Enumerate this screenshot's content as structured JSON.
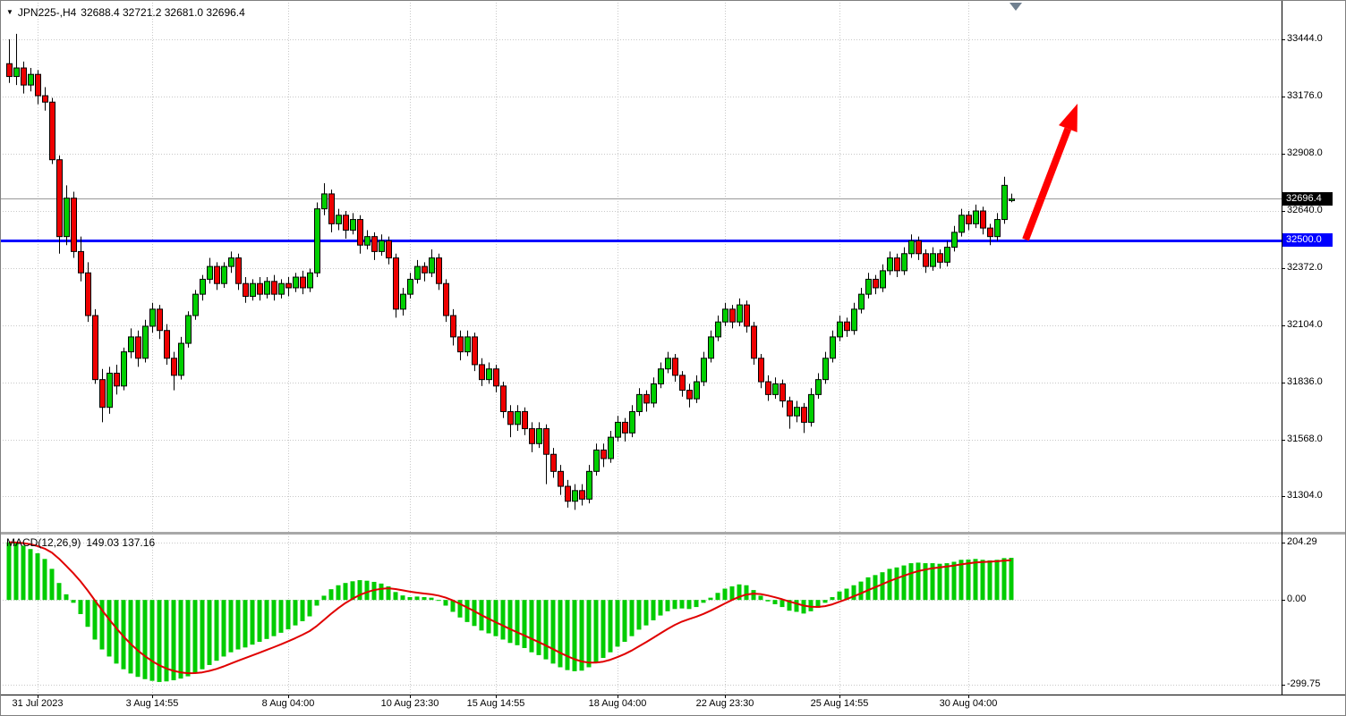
{
  "title_bar": {
    "menu_icon": "▼",
    "symbol": "JPN225-,H4",
    "ohlc": "32688.4 32721.2 32681.0 32696.4"
  },
  "macd_label": {
    "name": "MACD(12,26,9)",
    "values": "149.03 137.16"
  },
  "price_axis": {
    "current_badge": "32696.4",
    "level_badge": "32500.0"
  },
  "colors": {
    "background": "#FFFFFF",
    "grid": "#C8C8C8",
    "up": "#00CF00",
    "down": "#EE0000",
    "outline": "#000000",
    "histogram": "#00CC00",
    "signal": "#E00000",
    "level_line": "#0000FF",
    "arrow": "#FF0000",
    "current_line": "#999999"
  },
  "chart_data": [
    {
      "type": "candlestick",
      "symbol": "JPN225-",
      "timeframe": "H4",
      "current_price": 32696.4,
      "ylim": [
        31145,
        33620
      ],
      "y_ticks": [
        "33444.0",
        "33176.0",
        "32908.0",
        "32640.0",
        "32372.0",
        "32104.0",
        "31836.0",
        "31568.0",
        "31304.0"
      ],
      "x_ticks": [
        {
          "label": "31 Jul 2023",
          "i": 4
        },
        {
          "label": "3 Aug 14:55",
          "i": 20
        },
        {
          "label": "8 Aug 04:00",
          "i": 39
        },
        {
          "label": "10 Aug 23:30",
          "i": 56
        },
        {
          "label": "15 Aug 14:55",
          "i": 68
        },
        {
          "label": "18 Aug 04:00",
          "i": 85
        },
        {
          "label": "22 Aug 23:30",
          "i": 100
        },
        {
          "label": "25 Aug 14:55",
          "i": 116
        },
        {
          "label": "30 Aug 04:00",
          "i": 134
        }
      ],
      "annotations": {
        "hline": {
          "price": 32500.0,
          "width": 3
        },
        "arrow": {
          "from": [
            1146,
            268
          ],
          "to": [
            1204,
            116
          ]
        },
        "top_marker": {
          "x": 1135,
          "color": "#708090"
        }
      },
      "candles": [
        [
          33330,
          33444,
          33240,
          33270
        ],
        [
          33270,
          33470,
          33230,
          33310
        ],
        [
          33310,
          33340,
          33190,
          33230
        ],
        [
          33230,
          33310,
          33200,
          33280
        ],
        [
          33280,
          33300,
          33140,
          33180
        ],
        [
          33180,
          33220,
          33110,
          33150
        ],
        [
          33150,
          33170,
          32860,
          32880
        ],
        [
          32880,
          32900,
          32440,
          32520
        ],
        [
          32520,
          32760,
          32480,
          32700
        ],
        [
          32700,
          32730,
          32420,
          32450
        ],
        [
          32450,
          32520,
          32310,
          32350
        ],
        [
          32350,
          32400,
          32120,
          32150
        ],
        [
          32150,
          32180,
          31830,
          31850
        ],
        [
          31850,
          31900,
          31650,
          31720
        ],
        [
          31720,
          31910,
          31690,
          31880
        ],
        [
          31880,
          31920,
          31780,
          31820
        ],
        [
          31820,
          32000,
          31800,
          31980
        ],
        [
          31980,
          32090,
          31950,
          32050
        ],
        [
          32050,
          32080,
          31910,
          31950
        ],
        [
          31950,
          32130,
          31930,
          32100
        ],
        [
          32100,
          32210,
          32070,
          32180
        ],
        [
          32180,
          32200,
          32040,
          32080
        ],
        [
          32080,
          32110,
          31920,
          31950
        ],
        [
          31950,
          31980,
          31800,
          31870
        ],
        [
          31870,
          32050,
          31850,
          32020
        ],
        [
          32020,
          32170,
          32000,
          32150
        ],
        [
          32150,
          32270,
          32130,
          32250
        ],
        [
          32250,
          32340,
          32220,
          32320
        ],
        [
          32320,
          32420,
          32300,
          32380
        ],
        [
          32380,
          32400,
          32270,
          32300
        ],
        [
          32300,
          32400,
          32280,
          32380
        ],
        [
          32380,
          32450,
          32350,
          32420
        ],
        [
          32420,
          32440,
          32270,
          32300
        ],
        [
          32300,
          32330,
          32210,
          32240
        ],
        [
          32240,
          32320,
          32220,
          32300
        ],
        [
          32300,
          32330,
          32220,
          32250
        ],
        [
          32250,
          32330,
          32230,
          32310
        ],
        [
          32310,
          32340,
          32220,
          32250
        ],
        [
          32250,
          32320,
          32230,
          32300
        ],
        [
          32300,
          32330,
          32240,
          32280
        ],
        [
          32280,
          32350,
          32260,
          32330
        ],
        [
          32330,
          32360,
          32250,
          32280
        ],
        [
          32280,
          32370,
          32260,
          32350
        ],
        [
          32350,
          32680,
          32330,
          32650
        ],
        [
          32650,
          32770,
          32620,
          32720
        ],
        [
          32720,
          32740,
          32540,
          32580
        ],
        [
          32580,
          32650,
          32550,
          32620
        ],
        [
          32620,
          32640,
          32510,
          32550
        ],
        [
          32550,
          32630,
          32530,
          32600
        ],
        [
          32600,
          32620,
          32440,
          32480
        ],
        [
          32480,
          32550,
          32460,
          32520
        ],
        [
          32520,
          32540,
          32410,
          32450
        ],
        [
          32450,
          32530,
          32430,
          32500
        ],
        [
          32500,
          32520,
          32390,
          32420
        ],
        [
          32420,
          32440,
          32140,
          32180
        ],
        [
          32180,
          32280,
          32150,
          32250
        ],
        [
          32250,
          32350,
          32230,
          32320
        ],
        [
          32320,
          32410,
          32300,
          32380
        ],
        [
          32380,
          32400,
          32310,
          32350
        ],
        [
          32350,
          32460,
          32330,
          32420
        ],
        [
          32420,
          32440,
          32270,
          32300
        ],
        [
          32300,
          32320,
          32120,
          32150
        ],
        [
          32150,
          32180,
          32010,
          32050
        ],
        [
          32050,
          32080,
          31940,
          31980
        ],
        [
          31980,
          32080,
          31960,
          32050
        ],
        [
          32050,
          32070,
          31890,
          31920
        ],
        [
          31920,
          31950,
          31820,
          31850
        ],
        [
          31850,
          31930,
          31830,
          31900
        ],
        [
          31900,
          31920,
          31790,
          31820
        ],
        [
          31820,
          31840,
          31670,
          31700
        ],
        [
          31700,
          31730,
          31580,
          31640
        ],
        [
          31640,
          31730,
          31610,
          31700
        ],
        [
          31700,
          31720,
          31590,
          31620
        ],
        [
          31620,
          31650,
          31510,
          31550
        ],
        [
          31550,
          31650,
          31530,
          31620
        ],
        [
          31620,
          31640,
          31360,
          31500
        ],
        [
          31500,
          31530,
          31390,
          31420
        ],
        [
          31420,
          31450,
          31310,
          31350
        ],
        [
          31350,
          31380,
          31250,
          31280
        ],
        [
          31280,
          31360,
          31240,
          31330
        ],
        [
          31330,
          31360,
          31260,
          31290
        ],
        [
          31290,
          31450,
          31270,
          31420
        ],
        [
          31420,
          31550,
          31400,
          31520
        ],
        [
          31520,
          31550,
          31440,
          31480
        ],
        [
          31480,
          31610,
          31460,
          31580
        ],
        [
          31580,
          31680,
          31560,
          31650
        ],
        [
          31650,
          31670,
          31560,
          31600
        ],
        [
          31600,
          31730,
          31580,
          31700
        ],
        [
          31700,
          31810,
          31680,
          31780
        ],
        [
          31780,
          31800,
          31700,
          31740
        ],
        [
          31740,
          31860,
          31720,
          31830
        ],
        [
          31830,
          31930,
          31810,
          31900
        ],
        [
          31900,
          31980,
          31880,
          31950
        ],
        [
          31950,
          31970,
          31840,
          31870
        ],
        [
          31870,
          31890,
          31770,
          31800
        ],
        [
          31800,
          31830,
          31720,
          31760
        ],
        [
          31760,
          31870,
          31740,
          31840
        ],
        [
          31840,
          31980,
          31820,
          31950
        ],
        [
          31950,
          32080,
          31930,
          32050
        ],
        [
          32050,
          32150,
          32030,
          32120
        ],
        [
          32120,
          32210,
          32100,
          32180
        ],
        [
          32180,
          32200,
          32090,
          32120
        ],
        [
          32120,
          32230,
          32100,
          32200
        ],
        [
          32200,
          32220,
          32070,
          32100
        ],
        [
          32100,
          32120,
          31920,
          31950
        ],
        [
          31950,
          31970,
          31810,
          31840
        ],
        [
          31840,
          31870,
          31750,
          31780
        ],
        [
          31780,
          31860,
          31760,
          31830
        ],
        [
          31830,
          31850,
          31720,
          31750
        ],
        [
          31750,
          31770,
          31620,
          31680
        ],
        [
          31680,
          31750,
          31650,
          31720
        ],
        [
          31720,
          31740,
          31600,
          31650
        ],
        [
          31650,
          31810,
          31630,
          31780
        ],
        [
          31780,
          31880,
          31760,
          31850
        ],
        [
          31850,
          31980,
          31830,
          31950
        ],
        [
          31950,
          32080,
          31930,
          32050
        ],
        [
          32050,
          32150,
          32030,
          32120
        ],
        [
          32120,
          32140,
          32050,
          32080
        ],
        [
          32080,
          32210,
          32060,
          32180
        ],
        [
          32180,
          32280,
          32160,
          32250
        ],
        [
          32250,
          32350,
          32230,
          32320
        ],
        [
          32320,
          32340,
          32250,
          32280
        ],
        [
          32280,
          32390,
          32260,
          32360
        ],
        [
          32360,
          32450,
          32340,
          32420
        ],
        [
          32420,
          32440,
          32330,
          32360
        ],
        [
          32360,
          32470,
          32340,
          32440
        ],
        [
          32440,
          32530,
          32420,
          32500
        ],
        [
          32500,
          32520,
          32410,
          32440
        ],
        [
          32440,
          32460,
          32350,
          32380
        ],
        [
          32380,
          32470,
          32360,
          32440
        ],
        [
          32440,
          32460,
          32370,
          32400
        ],
        [
          32400,
          32500,
          32380,
          32470
        ],
        [
          32470,
          32570,
          32450,
          32540
        ],
        [
          32540,
          32650,
          32520,
          32620
        ],
        [
          32620,
          32640,
          32550,
          32580
        ],
        [
          32580,
          32670,
          32560,
          32640
        ],
        [
          32640,
          32660,
          32530,
          32560
        ],
        [
          32560,
          32580,
          32480,
          32520
        ],
        [
          32520,
          32630,
          32500,
          32600
        ],
        [
          32600,
          32800,
          32580,
          32760
        ],
        [
          32688.4,
          32721.2,
          32681.0,
          32696.4
        ]
      ]
    },
    {
      "type": "bar",
      "name": "MACD(12,26,9)",
      "main_value": 149.03,
      "signal_value": 137.16,
      "signal_period": 9,
      "ylim": [
        -325,
        225
      ],
      "y_ticks": [
        "204.29",
        "0.00",
        "-299.75"
      ],
      "histogram": [
        204,
        200,
        192,
        180,
        165,
        145,
        110,
        60,
        20,
        -10,
        -50,
        -95,
        -140,
        -175,
        -200,
        -225,
        -245,
        -260,
        -272,
        -280,
        -286,
        -290,
        -288,
        -284,
        -278,
        -270,
        -258,
        -245,
        -230,
        -215,
        -200,
        -185,
        -175,
        -168,
        -158,
        -148,
        -138,
        -128,
        -116,
        -104,
        -90,
        -75,
        -58,
        -20,
        15,
        38,
        52,
        60,
        66,
        70,
        68,
        64,
        58,
        48,
        28,
        16,
        10,
        12,
        10,
        8,
        -2,
        -20,
        -42,
        -62,
        -78,
        -92,
        -108,
        -118,
        -128,
        -140,
        -152,
        -160,
        -170,
        -185,
        -195,
        -210,
        -225,
        -238,
        -248,
        -252,
        -250,
        -238,
        -220,
        -205,
        -185,
        -165,
        -148,
        -128,
        -105,
        -90,
        -72,
        -55,
        -40,
        -32,
        -30,
        -32,
        -25,
        -10,
        8,
        25,
        40,
        48,
        55,
        52,
        35,
        15,
        -5,
        -15,
        -25,
        -38,
        -42,
        -48,
        -40,
        -28,
        -10,
        10,
        30,
        40,
        52,
        65,
        80,
        88,
        98,
        110,
        115,
        122,
        130,
        132,
        130,
        130,
        128,
        130,
        135,
        142,
        143,
        145,
        142,
        140,
        142,
        148,
        149.03
      ]
    }
  ]
}
